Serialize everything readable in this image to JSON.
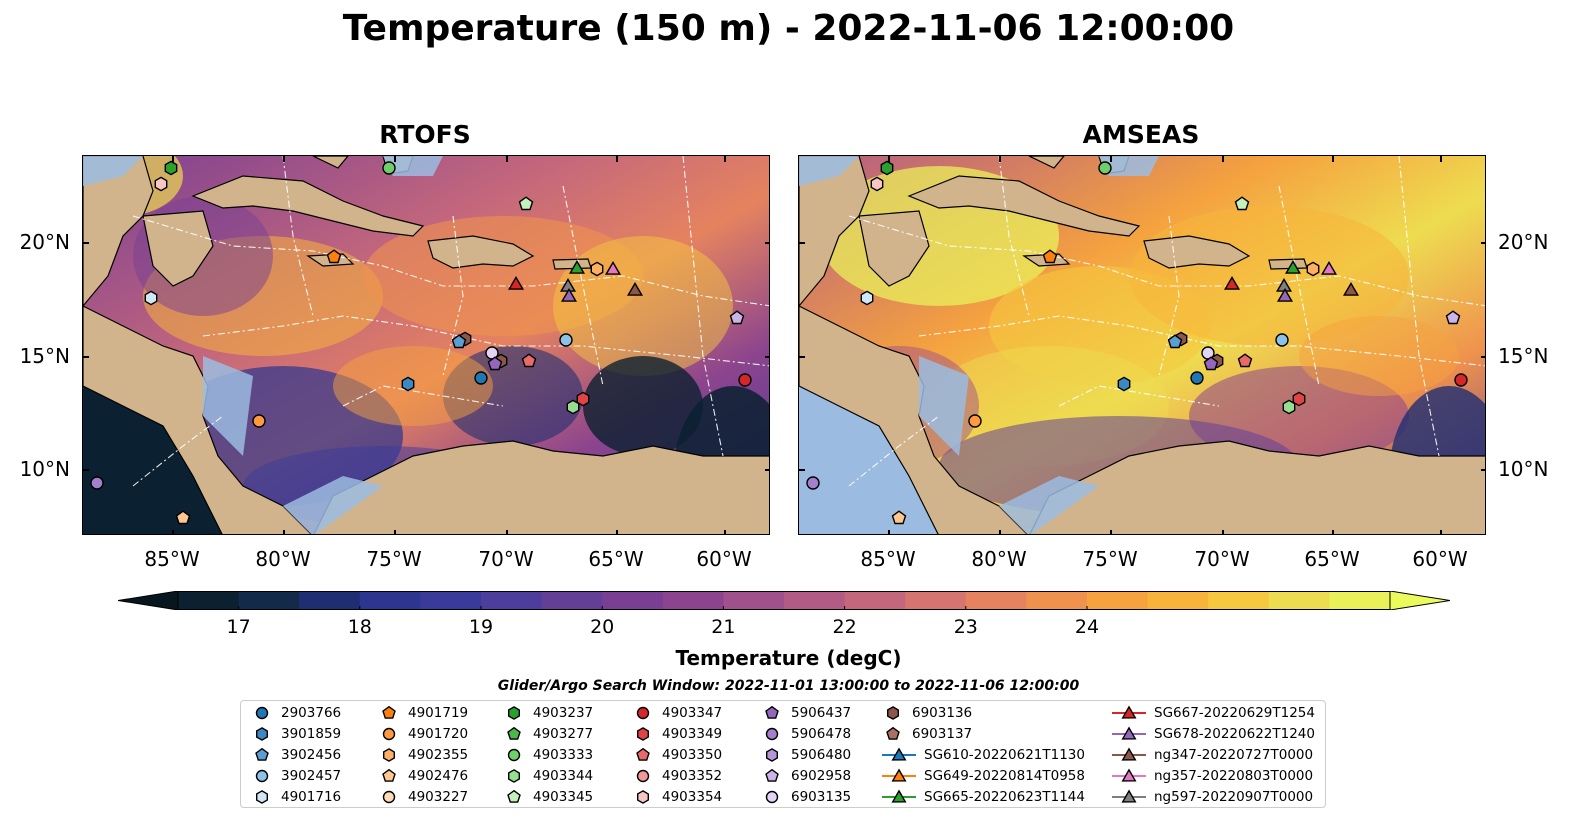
{
  "title": "Temperature (150 m) - 2022-11-06 12:00:00",
  "panels": [
    {
      "title": "RTOFS",
      "theme": "rtofs"
    },
    {
      "title": "AMSEAS",
      "theme": "amseas"
    }
  ],
  "lat_ticks": [
    "20°N",
    "15°N",
    "10°N"
  ],
  "lon_ticks": [
    "85°W",
    "80°W",
    "75°W",
    "70°W",
    "65°W",
    "60°W"
  ],
  "colorbar": {
    "label": "Temperature (degC)",
    "ticks": [
      "17",
      "18",
      "19",
      "20",
      "21",
      "22",
      "23",
      "24"
    ],
    "colors": [
      "#0b2030",
      "#142a4a",
      "#1f2e72",
      "#2c3590",
      "#3a3a9a",
      "#4d3d9c",
      "#633f98",
      "#783f92",
      "#8c448e",
      "#a0508a",
      "#b25b84",
      "#c4677c",
      "#d67570",
      "#e58360",
      "#ef924e",
      "#f5a23f",
      "#f8b43a",
      "#f5c840",
      "#eedc50",
      "#e9f05a"
    ],
    "under_color": "#07161f",
    "over_color": "#ecfb5c"
  },
  "search_window": "Glider/Argo Search Window: 2022-11-01 13:00:00 to 2022-11-06 12:00:00",
  "legend_columns": [
    [
      {
        "label": "2903766",
        "marker": "circle",
        "color": "#1f77b4"
      },
      {
        "label": "3901859",
        "marker": "hexagon",
        "color": "#3a88c4"
      },
      {
        "label": "3902456",
        "marker": "pentagon",
        "color": "#5b9ed4"
      },
      {
        "label": "3902457",
        "marker": "circle",
        "color": "#8cc2e6"
      },
      {
        "label": "4901716",
        "marker": "hexagon",
        "color": "#cfe7f6"
      }
    ],
    [
      {
        "label": "4901719",
        "marker": "pentagon",
        "color": "#ff7f0e"
      },
      {
        "label": "4901720",
        "marker": "circle",
        "color": "#ff9a40"
      },
      {
        "label": "4902355",
        "marker": "hexagon",
        "color": "#ffae66"
      },
      {
        "label": "4902476",
        "marker": "pentagon",
        "color": "#ffc690"
      },
      {
        "label": "4903227",
        "marker": "circle",
        "color": "#ffdcb8"
      }
    ],
    [
      {
        "label": "4903237",
        "marker": "hexagon",
        "color": "#2ca02c"
      },
      {
        "label": "4903277",
        "marker": "pentagon",
        "color": "#4cb84c"
      },
      {
        "label": "4903333",
        "marker": "circle",
        "color": "#6fcf6a"
      },
      {
        "label": "4903344",
        "marker": "hexagon",
        "color": "#96df8f"
      },
      {
        "label": "4903345",
        "marker": "pentagon",
        "color": "#c4f0bc"
      }
    ],
    [
      {
        "label": "4903347",
        "marker": "circle",
        "color": "#d62728"
      },
      {
        "label": "4903349",
        "marker": "hexagon",
        "color": "#e04444"
      },
      {
        "label": "4903350",
        "marker": "pentagon",
        "color": "#ea6a6a"
      },
      {
        "label": "4903352",
        "marker": "circle",
        "color": "#f29898"
      },
      {
        "label": "4903354",
        "marker": "hexagon",
        "color": "#f9c4c4"
      }
    ],
    [
      {
        "label": "5906437",
        "marker": "pentagon",
        "color": "#9467bd"
      },
      {
        "label": "5906478",
        "marker": "circle",
        "color": "#a47fcb"
      },
      {
        "label": "5906480",
        "marker": "hexagon",
        "color": "#b597d8"
      },
      {
        "label": "6902958",
        "marker": "pentagon",
        "color": "#ccb4e8"
      },
      {
        "label": "6903135",
        "marker": "circle",
        "color": "#e3d4f6"
      }
    ],
    [
      {
        "label": "6903136",
        "marker": "hexagon",
        "color": "#8c564b"
      },
      {
        "label": "6903137",
        "marker": "pentagon",
        "color": "#a87066"
      },
      {
        "label": "SG610-20220621T1130",
        "marker": "triangle-line",
        "color": "#1f77b4"
      },
      {
        "label": "SG649-20220814T0958",
        "marker": "triangle-line",
        "color": "#ff7f0e"
      },
      {
        "label": "SG665-20220623T1144",
        "marker": "triangle-line",
        "color": "#2ca02c"
      }
    ],
    [
      {
        "label": "SG667-20220629T1254",
        "marker": "triangle-line",
        "color": "#d62728"
      },
      {
        "label": "SG678-20220622T1240",
        "marker": "triangle-line",
        "color": "#9467bd"
      },
      {
        "label": "ng347-20220727T0000",
        "marker": "triangle-line",
        "color": "#8c564b"
      },
      {
        "label": "ng357-20220803T0000",
        "marker": "triangle-line",
        "color": "#e377c2"
      },
      {
        "label": "ng597-20220907T0000",
        "marker": "triangle-line",
        "color": "#7f7f7f"
      }
    ]
  ]
}
